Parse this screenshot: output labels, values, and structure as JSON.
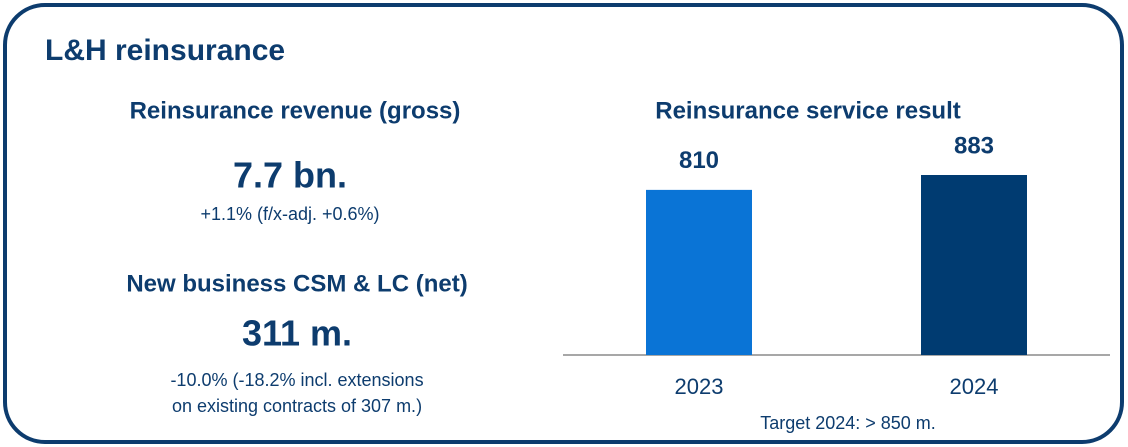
{
  "header": {
    "title": "L&H reinsurance"
  },
  "metrics": [
    {
      "label": "Reinsurance revenue (gross)",
      "value": "7.7 bn.",
      "note": [
        "+1.1% (f/x-adj. +0.6%)"
      ]
    },
    {
      "label": "New business CSM & LC (net)",
      "value": "311 m.",
      "note": [
        "-10.0% (-18.2% incl. extensions",
        "on existing contracts of 307 m.)"
      ]
    }
  ],
  "chart_data": {
    "type": "bar",
    "title": "Reinsurance service result",
    "categories": [
      "2023",
      "2024"
    ],
    "values": [
      810,
      883
    ],
    "colors": [
      "#0a74d6",
      "#003b71"
    ],
    "annotation": "Target 2024: > 850 m."
  }
}
